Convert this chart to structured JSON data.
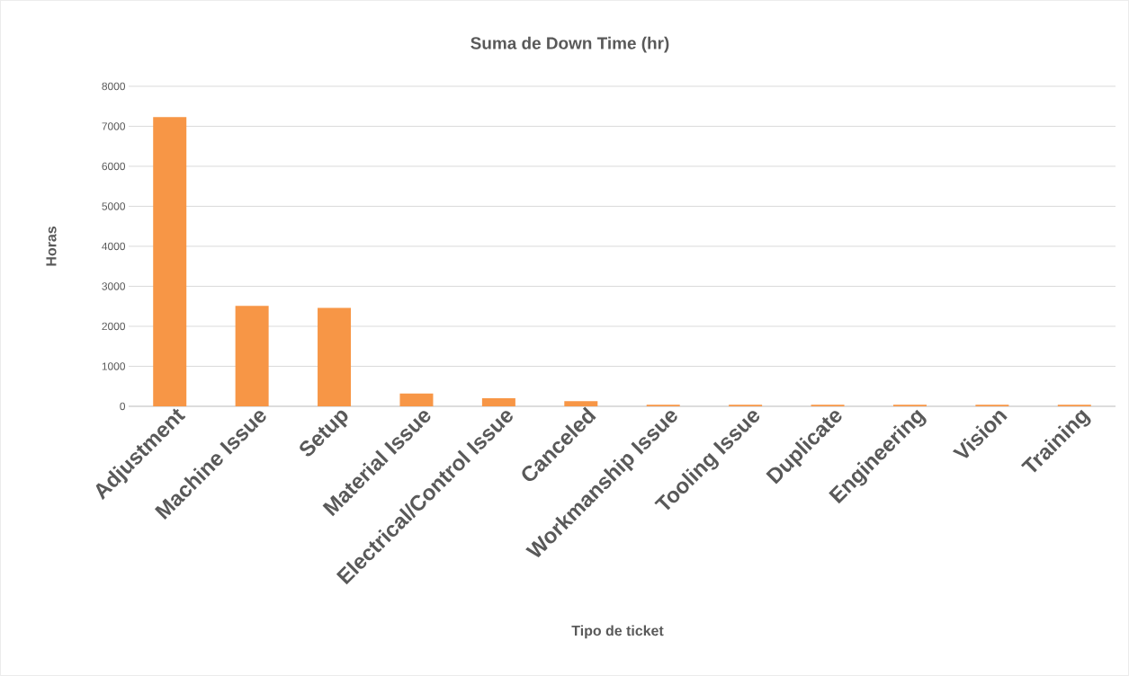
{
  "chart_data": {
    "type": "bar",
    "title": "Suma de Down Time (hr)",
    "xlabel": "Tipo de ticket",
    "ylabel": "Horas",
    "categories": [
      "Adjustment",
      "Machine Issue",
      "Setup",
      "Material Issue",
      "Electrical/Control Issue",
      "Canceled",
      "Workmanship Issue",
      "Tooling Issue",
      "Duplicate",
      "Engineering",
      "Vision",
      "Training"
    ],
    "values": [
      7230,
      2510,
      2460,
      320,
      200,
      130,
      40,
      40,
      40,
      40,
      40,
      40
    ],
    "color": "#f79646",
    "ylim": [
      0,
      8000
    ],
    "yticks": [
      0,
      1000,
      2000,
      3000,
      4000,
      5000,
      6000,
      7000,
      8000
    ],
    "grid": "y"
  }
}
